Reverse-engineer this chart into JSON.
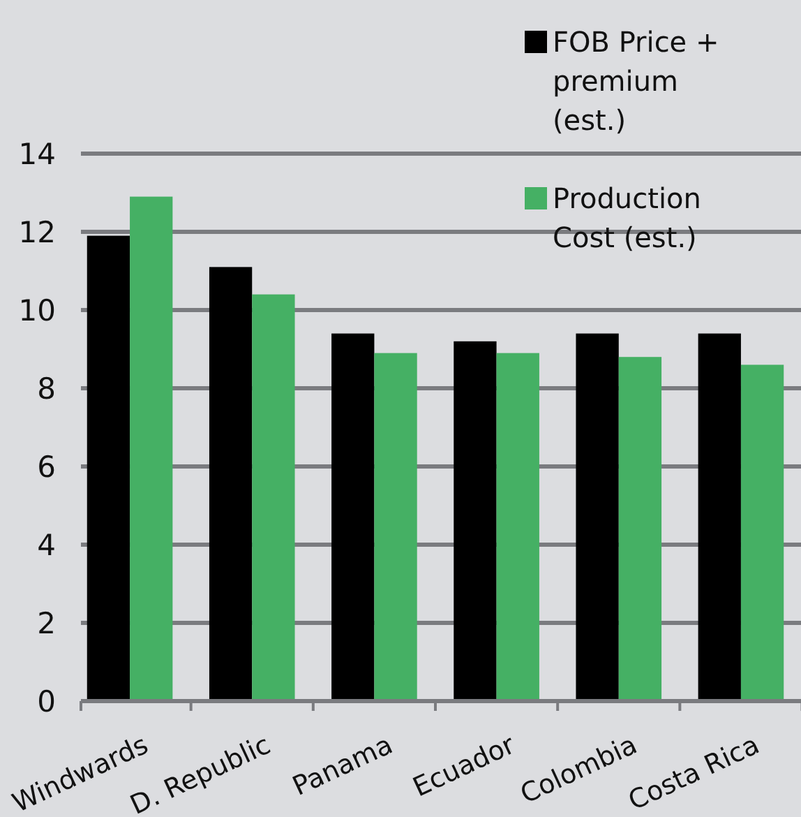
{
  "chart_data": {
    "type": "bar",
    "categories": [
      "Windwards",
      "D. Republic",
      "Panama",
      "Ecuador",
      "Colombia",
      "Costa Rica"
    ],
    "series": [
      {
        "name": "FOB Price + premium (est.)",
        "color": "#000000",
        "values": [
          11.9,
          11.1,
          9.4,
          9.2,
          9.4,
          9.4
        ]
      },
      {
        "name": "Production Cost (est.)",
        "color": "#45b064",
        "values": [
          12.9,
          10.4,
          8.9,
          8.9,
          8.8,
          8.6
        ]
      }
    ],
    "ylim": [
      0,
      14
    ],
    "yticks": [
      0,
      2,
      4,
      6,
      8,
      10,
      12,
      14
    ],
    "grid": "y",
    "legend": "top right"
  }
}
